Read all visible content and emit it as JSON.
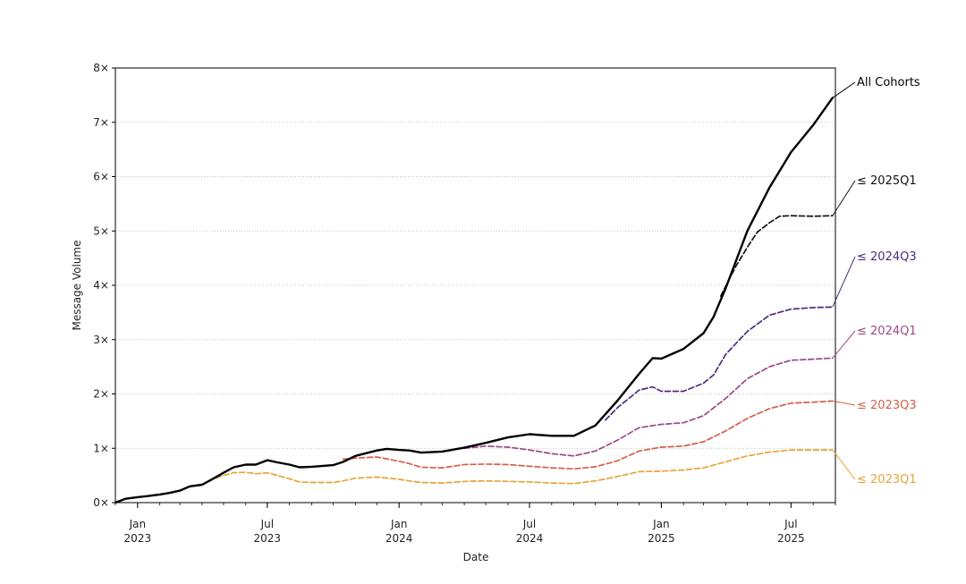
{
  "chart_data": {
    "type": "line",
    "title": "",
    "xlabel": "Date",
    "ylabel": "Message Volume",
    "xlim": [
      "2022-12-01",
      "2025-09-01"
    ],
    "ylim": [
      0,
      8
    ],
    "y_ticks": [
      {
        "value": 0,
        "label": "0×"
      },
      {
        "value": 1,
        "label": "1×"
      },
      {
        "value": 2,
        "label": "2×"
      },
      {
        "value": 3,
        "label": "3×"
      },
      {
        "value": 4,
        "label": "4×"
      },
      {
        "value": 5,
        "label": "5×"
      },
      {
        "value": 6,
        "label": "6×"
      },
      {
        "value": 7,
        "label": "7×"
      },
      {
        "value": 8,
        "label": "8×"
      }
    ],
    "x_major_ticks": [
      {
        "date": "2023-01-01",
        "line1": "Jan",
        "line2": "2023"
      },
      {
        "date": "2023-07-01",
        "line1": "Jul",
        "line2": "2023"
      },
      {
        "date": "2024-01-01",
        "line1": "Jan",
        "line2": "2024"
      },
      {
        "date": "2024-07-01",
        "line1": "Jul",
        "line2": "2024"
      },
      {
        "date": "2025-01-01",
        "line1": "Jan",
        "line2": "2025"
      },
      {
        "date": "2025-07-01",
        "line1": "Jul",
        "line2": "2025"
      }
    ],
    "grid": "horizontal-dotted",
    "legend": "direct labels at right end of each line",
    "series": [
      {
        "name": "≤ 2023Q1",
        "color": "#e8a33a",
        "style": "dashed",
        "points": [
          [
            "2022-12-01",
            0
          ],
          [
            "2022-12-15",
            0.07
          ],
          [
            "2023-01-01",
            0.1
          ],
          [
            "2023-01-15",
            0.12
          ],
          [
            "2023-02-01",
            0.15
          ],
          [
            "2023-02-15",
            0.18
          ],
          [
            "2023-03-01",
            0.22
          ],
          [
            "2023-03-15",
            0.3
          ],
          [
            "2023-04-01",
            0.33
          ],
          [
            "2023-04-15",
            0.43
          ],
          [
            "2023-05-01",
            0.5
          ],
          [
            "2023-05-15",
            0.55
          ],
          [
            "2023-06-01",
            0.56
          ],
          [
            "2023-06-15",
            0.53
          ],
          [
            "2023-07-01",
            0.55
          ],
          [
            "2023-07-15",
            0.5
          ],
          [
            "2023-08-01",
            0.44
          ],
          [
            "2023-08-15",
            0.38
          ],
          [
            "2023-09-01",
            0.37
          ],
          [
            "2023-10-01",
            0.37
          ],
          [
            "2023-10-15",
            0.4
          ],
          [
            "2023-11-01",
            0.45
          ],
          [
            "2023-12-01",
            0.47
          ],
          [
            "2024-01-01",
            0.43
          ],
          [
            "2024-01-15",
            0.4
          ],
          [
            "2024-02-01",
            0.37
          ],
          [
            "2024-03-01",
            0.36
          ],
          [
            "2024-04-01",
            0.39
          ],
          [
            "2024-05-01",
            0.4
          ],
          [
            "2024-06-01",
            0.39
          ],
          [
            "2024-07-01",
            0.38
          ],
          [
            "2024-08-01",
            0.36
          ],
          [
            "2024-09-01",
            0.35
          ],
          [
            "2024-10-01",
            0.4
          ],
          [
            "2024-11-01",
            0.48
          ],
          [
            "2024-12-01",
            0.57
          ],
          [
            "2025-01-01",
            0.58
          ],
          [
            "2025-02-01",
            0.6
          ],
          [
            "2025-03-01",
            0.64
          ],
          [
            "2025-04-01",
            0.75
          ],
          [
            "2025-05-01",
            0.86
          ],
          [
            "2025-06-01",
            0.93
          ],
          [
            "2025-07-01",
            0.97
          ],
          [
            "2025-08-01",
            0.97
          ],
          [
            "2025-08-28",
            0.97
          ]
        ]
      },
      {
        "name": "≤ 2023Q3",
        "color": "#d4604a",
        "style": "dashed",
        "points": [
          [
            "2023-10-15",
            0.8
          ],
          [
            "2023-11-01",
            0.82
          ],
          [
            "2023-12-01",
            0.84
          ],
          [
            "2024-01-01",
            0.76
          ],
          [
            "2024-01-15",
            0.72
          ],
          [
            "2024-02-01",
            0.65
          ],
          [
            "2024-03-01",
            0.64
          ],
          [
            "2024-04-01",
            0.7
          ],
          [
            "2024-05-01",
            0.71
          ],
          [
            "2024-06-01",
            0.7
          ],
          [
            "2024-07-01",
            0.67
          ],
          [
            "2024-08-01",
            0.64
          ],
          [
            "2024-09-01",
            0.62
          ],
          [
            "2024-10-01",
            0.66
          ],
          [
            "2024-11-01",
            0.77
          ],
          [
            "2024-12-01",
            0.95
          ],
          [
            "2025-01-01",
            1.02
          ],
          [
            "2025-02-01",
            1.04
          ],
          [
            "2025-03-01",
            1.12
          ],
          [
            "2025-04-01",
            1.32
          ],
          [
            "2025-05-01",
            1.55
          ],
          [
            "2025-06-01",
            1.73
          ],
          [
            "2025-07-01",
            1.83
          ],
          [
            "2025-08-01",
            1.85
          ],
          [
            "2025-08-28",
            1.87
          ]
        ]
      },
      {
        "name": "≤ 2024Q1",
        "color": "#9b4a84",
        "style": "dashed",
        "points": [
          [
            "2024-04-01",
            1.0
          ],
          [
            "2024-05-01",
            1.04
          ],
          [
            "2024-06-01",
            1.02
          ],
          [
            "2024-07-01",
            0.97
          ],
          [
            "2024-08-01",
            0.9
          ],
          [
            "2024-09-01",
            0.86
          ],
          [
            "2024-10-01",
            0.95
          ],
          [
            "2024-11-01",
            1.15
          ],
          [
            "2024-12-01",
            1.38
          ],
          [
            "2025-01-01",
            1.44
          ],
          [
            "2025-02-01",
            1.47
          ],
          [
            "2025-03-01",
            1.6
          ],
          [
            "2025-04-01",
            1.92
          ],
          [
            "2025-05-01",
            2.28
          ],
          [
            "2025-06-01",
            2.5
          ],
          [
            "2025-07-01",
            2.62
          ],
          [
            "2025-08-01",
            2.64
          ],
          [
            "2025-08-28",
            2.66
          ]
        ]
      },
      {
        "name": "≤ 2024Q3",
        "color": "#4b2c7f",
        "style": "dashed",
        "points": [
          [
            "2024-10-15",
            1.52
          ],
          [
            "2024-11-01",
            1.75
          ],
          [
            "2024-12-01",
            2.07
          ],
          [
            "2024-12-20",
            2.13
          ],
          [
            "2025-01-01",
            2.05
          ],
          [
            "2025-02-01",
            2.05
          ],
          [
            "2025-03-01",
            2.2
          ],
          [
            "2025-03-15",
            2.35
          ],
          [
            "2025-04-01",
            2.73
          ],
          [
            "2025-05-01",
            3.15
          ],
          [
            "2025-06-01",
            3.45
          ],
          [
            "2025-07-01",
            3.56
          ],
          [
            "2025-08-01",
            3.59
          ],
          [
            "2025-08-28",
            3.6
          ]
        ]
      },
      {
        "name": "≤ 2025Q1",
        "color": "#111111",
        "style": "dashed",
        "points": [
          [
            "2025-03-25",
            3.8
          ],
          [
            "2025-04-15",
            4.35
          ],
          [
            "2025-05-01",
            4.7
          ],
          [
            "2025-05-15",
            4.98
          ],
          [
            "2025-06-01",
            5.15
          ],
          [
            "2025-06-15",
            5.27
          ],
          [
            "2025-07-01",
            5.28
          ],
          [
            "2025-08-01",
            5.27
          ],
          [
            "2025-08-28",
            5.28
          ]
        ]
      },
      {
        "name": "All Cohorts",
        "color": "#000000",
        "style": "solid",
        "points": [
          [
            "2022-12-01",
            0
          ],
          [
            "2022-12-15",
            0.07
          ],
          [
            "2023-01-01",
            0.1
          ],
          [
            "2023-01-15",
            0.12
          ],
          [
            "2023-02-01",
            0.15
          ],
          [
            "2023-02-15",
            0.18
          ],
          [
            "2023-03-01",
            0.22
          ],
          [
            "2023-03-15",
            0.3
          ],
          [
            "2023-04-01",
            0.33
          ],
          [
            "2023-04-15",
            0.43
          ],
          [
            "2023-05-01",
            0.55
          ],
          [
            "2023-05-15",
            0.65
          ],
          [
            "2023-06-01",
            0.7
          ],
          [
            "2023-06-15",
            0.7
          ],
          [
            "2023-07-01",
            0.78
          ],
          [
            "2023-07-15",
            0.74
          ],
          [
            "2023-08-01",
            0.7
          ],
          [
            "2023-08-15",
            0.65
          ],
          [
            "2023-09-01",
            0.66
          ],
          [
            "2023-10-01",
            0.69
          ],
          [
            "2023-10-15",
            0.75
          ],
          [
            "2023-11-01",
            0.86
          ],
          [
            "2023-12-01",
            0.96
          ],
          [
            "2023-12-15",
            0.99
          ],
          [
            "2024-01-01",
            0.97
          ],
          [
            "2024-01-15",
            0.96
          ],
          [
            "2024-02-01",
            0.92
          ],
          [
            "2024-03-01",
            0.94
          ],
          [
            "2024-04-01",
            1.01
          ],
          [
            "2024-05-01",
            1.1
          ],
          [
            "2024-06-01",
            1.2
          ],
          [
            "2024-07-01",
            1.26
          ],
          [
            "2024-08-01",
            1.23
          ],
          [
            "2024-09-01",
            1.23
          ],
          [
            "2024-10-01",
            1.42
          ],
          [
            "2024-11-01",
            1.88
          ],
          [
            "2024-12-01",
            2.37
          ],
          [
            "2024-12-20",
            2.66
          ],
          [
            "2025-01-01",
            2.65
          ],
          [
            "2025-02-01",
            2.83
          ],
          [
            "2025-03-01",
            3.12
          ],
          [
            "2025-03-15",
            3.42
          ],
          [
            "2025-04-01",
            3.95
          ],
          [
            "2025-05-01",
            5.0
          ],
          [
            "2025-06-01",
            5.8
          ],
          [
            "2025-07-01",
            6.45
          ],
          [
            "2025-08-01",
            6.95
          ],
          [
            "2025-08-28",
            7.45
          ]
        ]
      }
    ]
  }
}
